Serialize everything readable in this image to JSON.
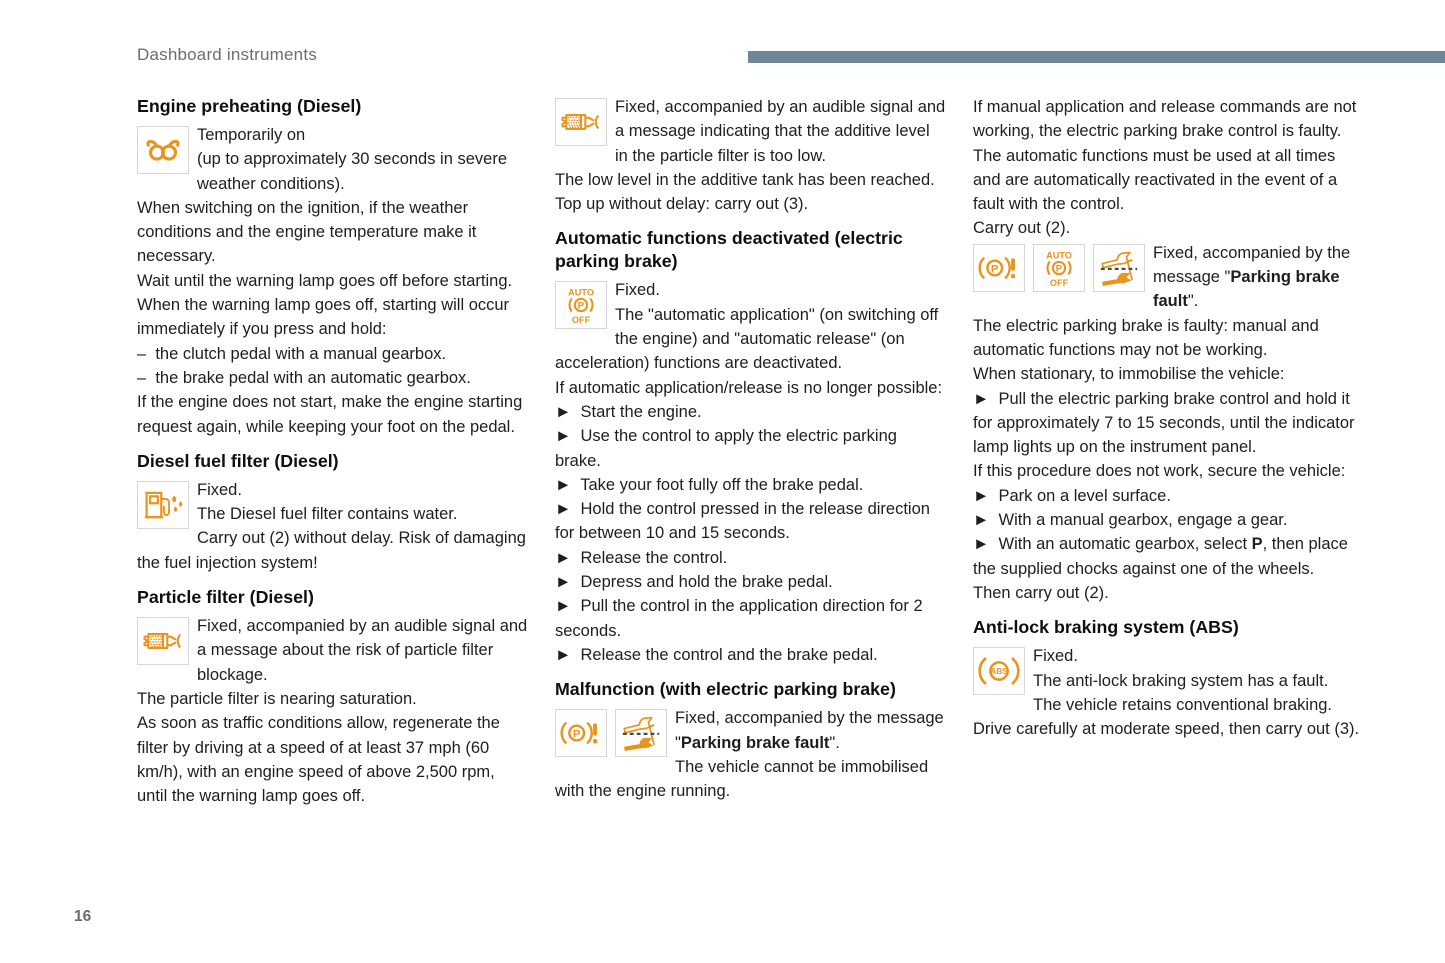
{
  "header": {
    "title": "Dashboard instruments",
    "accent_bar_color": "#6e8795"
  },
  "page": {
    "number": "16"
  },
  "icon_color": "#e9941f",
  "columns": [
    {
      "sections": [
        {
          "heading": "Engine preheating (Diesel)",
          "icons": [
            "glow-plug-icon"
          ],
          "paragraphs": [
            [
              {
                "t": "Temporarily on"
              }
            ],
            [
              {
                "t": "(up to approximately 30 seconds in severe weather conditions)."
              }
            ],
            [
              {
                "t": "When switching on the ignition, if the weather conditions and the engine temperature make it necessary."
              }
            ],
            [
              {
                "t": "Wait until the warning lamp goes off before starting."
              }
            ],
            [
              {
                "t": "When the warning lamp goes off, starting will occur immediately if you press and hold:"
              }
            ],
            [
              {
                "t": "–  the clutch pedal with a manual gearbox."
              }
            ],
            [
              {
                "t": "–  the brake pedal with an automatic gearbox."
              }
            ],
            [
              {
                "t": "If the engine does not start, make the engine starting request again, while keeping your foot on the pedal."
              }
            ]
          ]
        },
        {
          "heading": "Diesel fuel filter (Diesel)",
          "icons": [
            "fuel-filter-water-icon"
          ],
          "paragraphs": [
            [
              {
                "t": "Fixed."
              }
            ],
            [
              {
                "t": "The Diesel fuel filter contains water."
              }
            ],
            [
              {
                "t": "Carry out (2) without delay. Risk of damaging the fuel injection system!"
              }
            ]
          ]
        },
        {
          "heading": "Particle filter (Diesel)",
          "icons": [
            "particle-filter-icon"
          ],
          "paragraphs": [
            [
              {
                "t": "Fixed, accompanied by an audible signal and a message about the risk of particle filter blockage."
              }
            ],
            [
              {
                "t": "The particle filter is nearing saturation."
              }
            ],
            [
              {
                "t": "As soon as traffic conditions allow, regenerate the filter by driving at a speed of at least 37 mph (60 km/h), with an engine speed of above 2,500 rpm, until the warning lamp goes off."
              }
            ]
          ]
        }
      ]
    },
    {
      "sections": [
        {
          "icons": [
            "particle-filter-icon"
          ],
          "paragraphs": [
            [
              {
                "t": "Fixed, accompanied by an audible signal and a message indicating that the additive level in the particle filter is too low."
              }
            ],
            [
              {
                "t": "The low level in the additive tank has been reached."
              }
            ],
            [
              {
                "t": "Top up without delay: carry out (3)."
              }
            ]
          ]
        },
        {
          "heading": "Automatic functions deactivated (electric parking brake)",
          "icons": [
            "auto-park-off-icon"
          ],
          "paragraphs": [
            [
              {
                "t": "Fixed."
              }
            ],
            [
              {
                "t": "The \"automatic application\" (on switching off the engine) and \"automatic release\" (on acceleration) functions are deactivated."
              }
            ],
            [
              {
                "t": "If automatic application/release is no longer possible:"
              }
            ],
            [
              {
                "t": "►  Start the engine."
              }
            ],
            [
              {
                "t": "►  Use the control to apply the electric parking brake."
              }
            ],
            [
              {
                "t": "►  Take your foot fully off the brake pedal."
              }
            ],
            [
              {
                "t": "►  Hold the control pressed in the release direction for between 10 and 15 seconds."
              }
            ],
            [
              {
                "t": "►  Release the control."
              }
            ],
            [
              {
                "t": "►  Depress and hold the brake pedal."
              }
            ],
            [
              {
                "t": "►  Pull the control in the application direction for 2 seconds."
              }
            ],
            [
              {
                "t": "►  Release the control and the brake pedal."
              }
            ]
          ]
        },
        {
          "heading": "Malfunction (with electric parking brake)",
          "icons": [
            "parking-brake-fault-icon",
            "service-spanner-icon"
          ],
          "paragraphs": [
            [
              {
                "t": "Fixed, accompanied by the message \""
              },
              {
                "t": "Parking brake fault",
                "b": true
              },
              {
                "t": "\"."
              }
            ],
            [
              {
                "t": "The vehicle cannot be immobilised with the engine running."
              }
            ]
          ]
        }
      ]
    },
    {
      "sections": [
        {
          "paragraphs": [
            [
              {
                "t": "If manual application and release commands are not working, the electric parking brake control is faulty."
              }
            ],
            [
              {
                "t": "The automatic functions must be used at all times and are automatically reactivated in the event of a fault with the control."
              }
            ],
            [
              {
                "t": "Carry out (2)."
              }
            ]
          ]
        },
        {
          "icons": [
            "parking-brake-fault-icon",
            "auto-park-off-icon",
            "service-spanner-icon"
          ],
          "paragraphs": [
            [
              {
                "t": "Fixed, accompanied by the message \""
              },
              {
                "t": "Parking brake fault",
                "b": true
              },
              {
                "t": "\"."
              }
            ],
            [
              {
                "t": "The electric parking brake is faulty: manual and automatic functions may not be working."
              }
            ],
            [
              {
                "t": "When stationary, to immobilise the vehicle:"
              }
            ],
            [
              {
                "t": "►  Pull the electric parking brake control and hold it for approximately 7 to 15 seconds, until the indicator lamp lights up on the instrument panel."
              }
            ],
            [
              {
                "t": "If this procedure does not work, secure the vehicle:"
              }
            ],
            [
              {
                "t": "►  Park on a level surface."
              }
            ],
            [
              {
                "t": "►  With a manual gearbox, engage a gear."
              }
            ],
            [
              {
                "t": "►  With an automatic gearbox, select "
              },
              {
                "t": "P",
                "b": true
              },
              {
                "t": ", then place the supplied chocks against one of the wheels."
              }
            ],
            [
              {
                "t": "Then carry out (2)."
              }
            ]
          ]
        },
        {
          "heading": "Anti-lock braking system (ABS)",
          "icons": [
            "abs-icon"
          ],
          "paragraphs": [
            [
              {
                "t": "Fixed."
              }
            ],
            [
              {
                "t": "The anti-lock braking system has a fault."
              }
            ],
            [
              {
                "t": "The vehicle retains conventional braking."
              }
            ],
            [
              {
                "t": "Drive carefully at moderate speed, then carry out (3)."
              }
            ]
          ]
        }
      ]
    }
  ]
}
